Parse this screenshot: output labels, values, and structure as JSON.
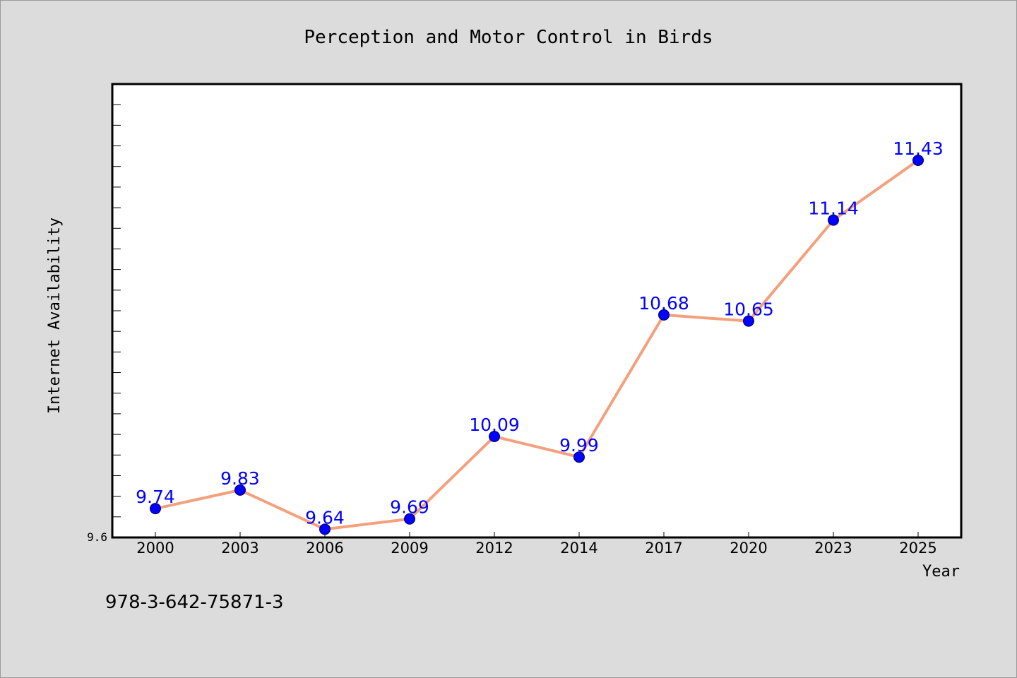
{
  "chart_data": {
    "type": "line",
    "title": "Perception and Motor Control in Birds",
    "xlabel": "Year",
    "ylabel": "Internet Availability",
    "categories": [
      "2000",
      "2003",
      "2006",
      "2009",
      "2012",
      "2014",
      "2017",
      "2020",
      "2023",
      "2025"
    ],
    "series": [
      {
        "values": [
          9.74,
          9.83,
          9.64,
          9.69,
          10.09,
          9.99,
          10.68,
          10.65,
          11.14,
          11.43
        ],
        "labels": [
          "9.74",
          "9.83",
          "9.64",
          "9.69",
          "10.09",
          "9.99",
          "10.68",
          "10.65",
          "11.14",
          "11.43"
        ]
      }
    ],
    "ylim": [
      9.6,
      11.8
    ],
    "yticks": [
      "9.6"
    ],
    "grid": false,
    "legend": "none",
    "colors": {
      "line": "#f4a07c",
      "marker": "#0000ff",
      "label": "#0000ff"
    }
  },
  "footnote": "978-3-642-75871-3"
}
